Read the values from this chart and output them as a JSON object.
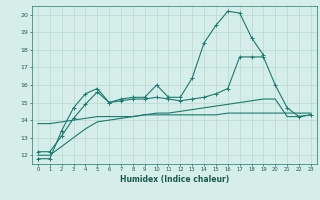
{
  "xlabel": "Humidex (Indice chaleur)",
  "bg_color": "#d6eeea",
  "grid_color": "#b8d8d2",
  "line_color": "#1a7a6e",
  "xlim": [
    -0.5,
    23.5
  ],
  "ylim": [
    11.5,
    20.5
  ],
  "yticks": [
    12,
    13,
    14,
    15,
    16,
    17,
    18,
    19,
    20
  ],
  "xticks": [
    0,
    1,
    2,
    3,
    4,
    5,
    6,
    7,
    8,
    9,
    10,
    11,
    12,
    13,
    14,
    15,
    16,
    17,
    18,
    19,
    20,
    21,
    22,
    23
  ],
  "series1_x": [
    0,
    1,
    2,
    3,
    4,
    5,
    6,
    7,
    8,
    9,
    10,
    11,
    12,
    13,
    14,
    15,
    16,
    17,
    18,
    19
  ],
  "series1_y": [
    11.8,
    11.8,
    13.4,
    14.7,
    15.5,
    15.8,
    15.0,
    15.2,
    15.3,
    15.3,
    16.0,
    15.3,
    15.3,
    16.4,
    18.4,
    19.4,
    20.2,
    20.1,
    18.7,
    17.7
  ],
  "series2_x": [
    0,
    1,
    2,
    3,
    4,
    5,
    6,
    7,
    8,
    9,
    10,
    11,
    12,
    13,
    14,
    15,
    16,
    17,
    18,
    19,
    20,
    21,
    22,
    23
  ],
  "series2_y": [
    13.8,
    13.8,
    13.9,
    14.0,
    14.1,
    14.2,
    14.2,
    14.2,
    14.2,
    14.3,
    14.3,
    14.3,
    14.3,
    14.3,
    14.3,
    14.3,
    14.4,
    14.4,
    14.4,
    14.4,
    14.4,
    14.4,
    14.4,
    14.4
  ],
  "series3_x": [
    0,
    1,
    2,
    3,
    4,
    5,
    6,
    7,
    8,
    9,
    10,
    11,
    12,
    13,
    14,
    15,
    16,
    17,
    18,
    19,
    20,
    21,
    22,
    23
  ],
  "series3_y": [
    12.0,
    12.0,
    12.5,
    13.0,
    13.5,
    13.9,
    14.0,
    14.1,
    14.2,
    14.3,
    14.4,
    14.4,
    14.5,
    14.6,
    14.7,
    14.8,
    14.9,
    15.0,
    15.1,
    15.2,
    15.2,
    14.2,
    14.2,
    14.3
  ],
  "series4_x": [
    0,
    1,
    2,
    3,
    4,
    5,
    6,
    7,
    8,
    9,
    10,
    11,
    12,
    13,
    14,
    15,
    16,
    17,
    18,
    19,
    20,
    21,
    22,
    23
  ],
  "series4_y": [
    12.2,
    12.2,
    13.1,
    14.1,
    14.9,
    15.6,
    15.0,
    15.1,
    15.2,
    15.2,
    15.3,
    15.2,
    15.1,
    15.2,
    15.3,
    15.5,
    15.8,
    17.6,
    17.6,
    17.6,
    16.0,
    14.7,
    14.2,
    14.3
  ]
}
